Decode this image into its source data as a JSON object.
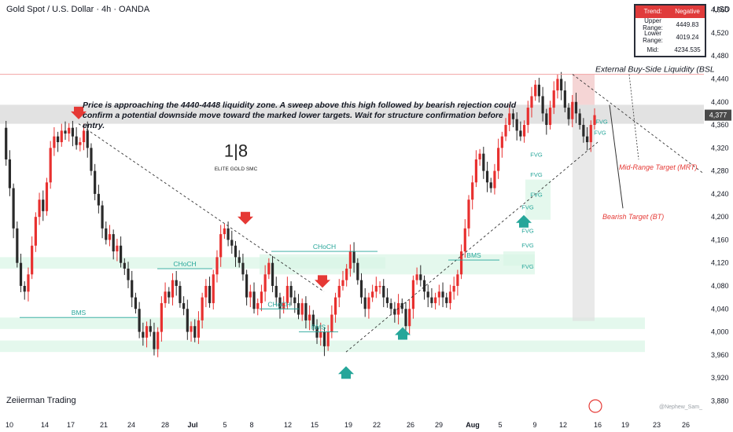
{
  "header": {
    "title": "Gold Spot / U.S. Dollar · 4h · OANDA"
  },
  "currency": "USD",
  "range_table": {
    "trend_label": "Trend:",
    "trend_value": "Negative",
    "upper_label": "Upper Range:",
    "upper_value": "4449.83",
    "lower_label": "Lower Range:",
    "lower_value": "4019.24",
    "mid_label": "Mid:",
    "mid_value": "4234.535"
  },
  "annotation": "Price is approaching the 4440-4448 liquidity zone. A sweep above this high followed by bearish rejection could confirm a potential downside move toward the marked lower targets. Wait for structure confirmation before entry.",
  "labels": {
    "bsl": "External Buy-Side Liquidity (BSL",
    "mrt": "Mid-Range Target (MRT)",
    "bt": "Bearish Target (BT)",
    "choch": "CHoCH",
    "bms": "BMS",
    "fvg": "FVG",
    "logo_text": "ELITE GOLD SMC"
  },
  "current_price": "4,377",
  "footer": {
    "brand": "Zeiierman Trading",
    "credit": "@Nephew_Sam_"
  },
  "colors": {
    "up": "#e8302f",
    "down": "#2a2a2a",
    "bull_zone": "#d9f5e6",
    "bear_arrow": "#e53935",
    "bull_arrow": "#26a69a",
    "bsl_line": "#f3a5a5"
  },
  "chart_data": {
    "type": "candlestick",
    "ylim": [
      3860,
      4580
    ],
    "yticks": [
      "4,560",
      "4,520",
      "4,480",
      "4,440",
      "4,400",
      "4,360",
      "4,320",
      "4,280",
      "4,240",
      "4,200",
      "4,160",
      "4,120",
      "4,080",
      "4,040",
      "4,000",
      "3,960",
      "3,920",
      "3,880"
    ],
    "xticks": [
      "10",
      "14",
      "17",
      "21",
      "24",
      "28",
      "Jul",
      "5",
      "8",
      "12",
      "15",
      "19",
      "22",
      "26",
      "29",
      "Aug",
      "5",
      "9",
      "12",
      "16",
      "19",
      "23",
      "26"
    ],
    "close_path": [
      4355,
      4300,
      4250,
      4180,
      4120,
      4080,
      4070,
      4100,
      4150,
      4200,
      4230,
      4210,
      4260,
      4320,
      4340,
      4330,
      4350,
      4345,
      4355,
      4340,
      4325,
      4330,
      4350,
      4320,
      4280,
      4240,
      4220,
      4180,
      4160,
      4170,
      4140,
      4150,
      4120,
      4110,
      4090,
      4060,
      4040,
      4000,
      3990,
      4010,
      4000,
      3970,
      4000,
      4050,
      4070,
      4060,
      4090,
      4080,
      4050,
      4040,
      4000,
      4010,
      3990,
      4020,
      4060,
      4080,
      4050,
      4100,
      4130,
      4170,
      4180,
      4160,
      4150,
      4130,
      4120,
      4100,
      4060,
      4070,
      4040,
      4050,
      4070,
      4100,
      4120,
      4080,
      4060,
      4040,
      4050,
      4080,
      4060,
      4050,
      4030,
      4050,
      4020,
      4030,
      4010,
      3990,
      4000,
      3975,
      4000,
      4030,
      4060,
      4080,
      4090,
      4110,
      4140,
      4120,
      4090,
      4060,
      4040,
      4060,
      4070,
      4080,
      4080,
      4060,
      4050,
      4040,
      4030,
      4050,
      4040,
      4010,
      4040,
      4090,
      4100,
      4090,
      4070,
      4060,
      4050,
      4060,
      4070,
      4060,
      4050,
      4070,
      4080,
      4100,
      4140,
      4180,
      4230,
      4260,
      4300,
      4310,
      4280,
      4260,
      4250,
      4280,
      4320,
      4340,
      4360,
      4380,
      4370,
      4350,
      4340,
      4360,
      4390,
      4410,
      4430,
      4410,
      4380,
      4360,
      4390,
      4420,
      4440,
      4420,
      4390,
      4370,
      4400,
      4380,
      4360,
      4340,
      4330,
      4360,
      4377
    ],
    "last_close": 4377,
    "levels": {
      "bsl": 4448,
      "upper": 4449.83,
      "lower": 4019.24,
      "mid": 4234.535,
      "bms": [
        4025,
        3985
      ],
      "choch": [
        4095,
        4140,
        4162
      ]
    }
  }
}
